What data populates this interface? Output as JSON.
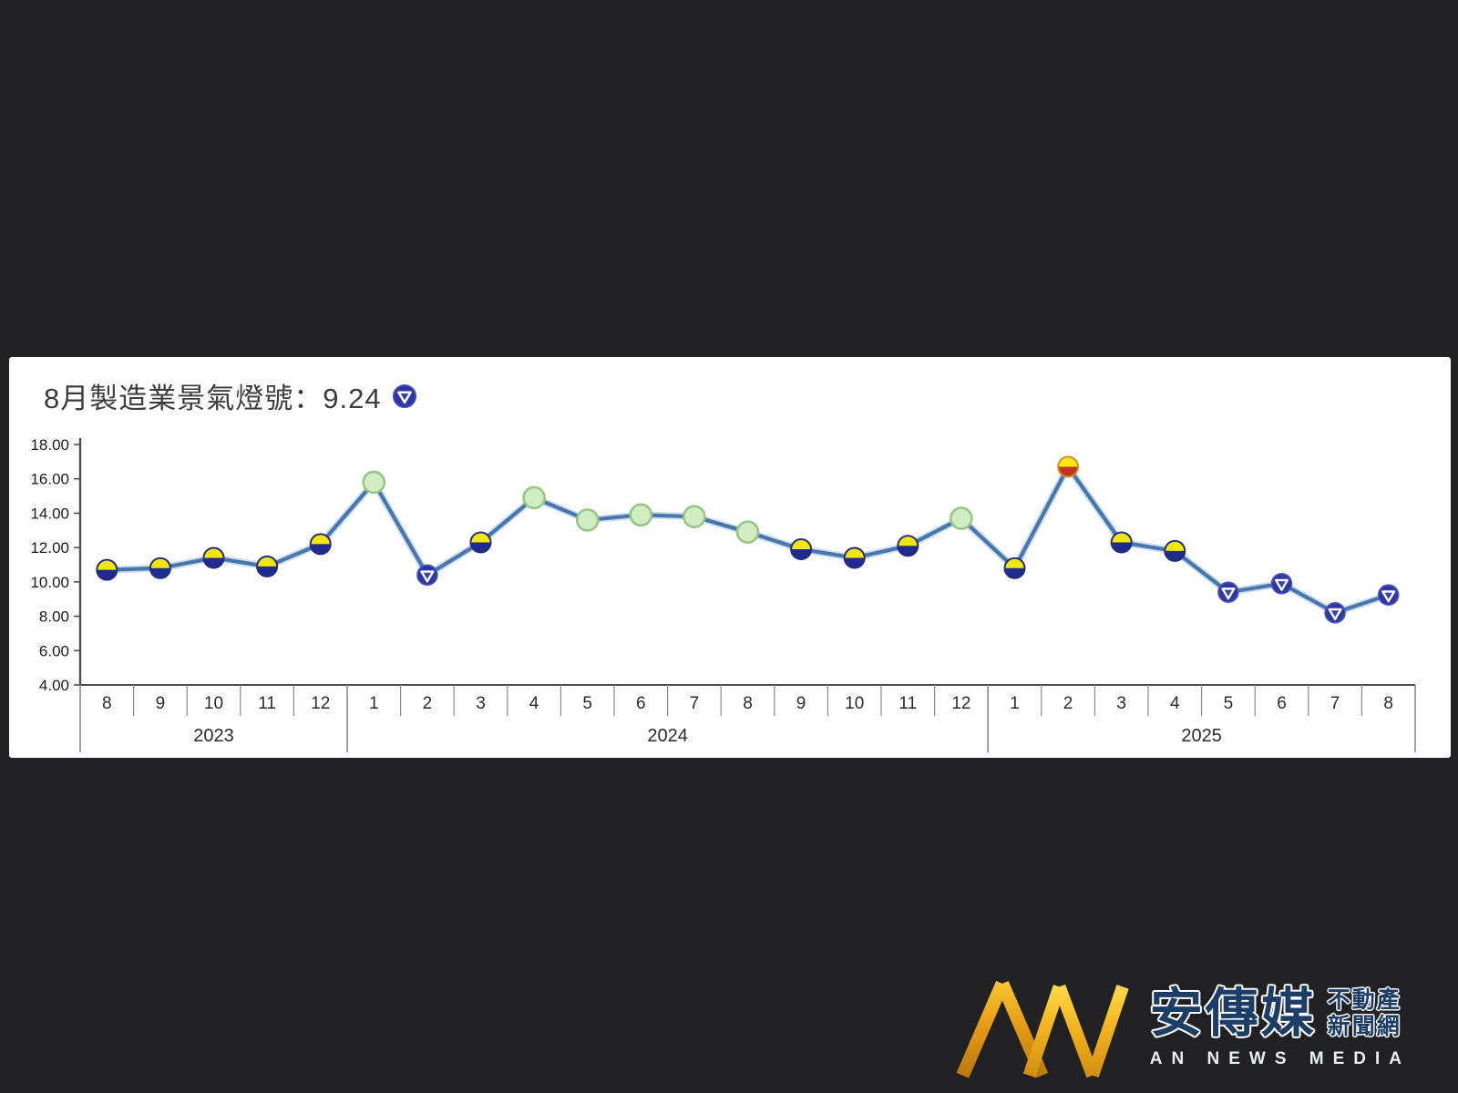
{
  "header": {
    "title": "8月製造業景氣燈號：9.24",
    "title_icon": "blue-light-icon"
  },
  "chart_data": {
    "type": "line",
    "title": "8月製造業景氣燈號：9.24",
    "ylim": [
      4,
      18
    ],
    "ytick_step": 2,
    "ytick_labels": [
      "18.00",
      "16.00",
      "14.00",
      "12.00",
      "10.00",
      "8.00",
      "6.00",
      "4.00"
    ],
    "grid": "off",
    "legend": "none",
    "years": [
      {
        "label": "2023",
        "months": [
          "8",
          "9",
          "10",
          "11",
          "12"
        ]
      },
      {
        "label": "2024",
        "months": [
          "1",
          "2",
          "3",
          "4",
          "5",
          "6",
          "7",
          "8",
          "9",
          "10",
          "11",
          "12"
        ]
      },
      {
        "label": "2025",
        "months": [
          "1",
          "2",
          "3",
          "4",
          "5",
          "6",
          "7",
          "8"
        ]
      }
    ],
    "points": [
      {
        "year": "2023",
        "month": "8",
        "value": 10.7,
        "signal": "yellow-blue"
      },
      {
        "year": "2023",
        "month": "9",
        "value": 10.8,
        "signal": "yellow-blue"
      },
      {
        "year": "2023",
        "month": "10",
        "value": 11.4,
        "signal": "yellow-blue"
      },
      {
        "year": "2023",
        "month": "11",
        "value": 10.9,
        "signal": "yellow-blue"
      },
      {
        "year": "2023",
        "month": "12",
        "value": 12.2,
        "signal": "yellow-blue"
      },
      {
        "year": "2024",
        "month": "1",
        "value": 15.8,
        "signal": "green"
      },
      {
        "year": "2024",
        "month": "2",
        "value": 10.4,
        "signal": "blue"
      },
      {
        "year": "2024",
        "month": "3",
        "value": 12.3,
        "signal": "yellow-blue"
      },
      {
        "year": "2024",
        "month": "4",
        "value": 14.9,
        "signal": "green"
      },
      {
        "year": "2024",
        "month": "5",
        "value": 13.6,
        "signal": "green"
      },
      {
        "year": "2024",
        "month": "6",
        "value": 13.9,
        "signal": "green"
      },
      {
        "year": "2024",
        "month": "7",
        "value": 13.8,
        "signal": "green"
      },
      {
        "year": "2024",
        "month": "8",
        "value": 12.9,
        "signal": "green"
      },
      {
        "year": "2024",
        "month": "9",
        "value": 11.9,
        "signal": "yellow-blue"
      },
      {
        "year": "2024",
        "month": "10",
        "value": 11.4,
        "signal": "yellow-blue"
      },
      {
        "year": "2024",
        "month": "11",
        "value": 12.1,
        "signal": "yellow-blue"
      },
      {
        "year": "2024",
        "month": "12",
        "value": 13.7,
        "signal": "green"
      },
      {
        "year": "2025",
        "month": "1",
        "value": 10.8,
        "signal": "yellow-blue"
      },
      {
        "year": "2025",
        "month": "2",
        "value": 16.7,
        "signal": "yellow-red"
      },
      {
        "year": "2025",
        "month": "3",
        "value": 12.3,
        "signal": "yellow-blue"
      },
      {
        "year": "2025",
        "month": "4",
        "value": 11.8,
        "signal": "yellow-blue"
      },
      {
        "year": "2025",
        "month": "5",
        "value": 9.4,
        "signal": "blue"
      },
      {
        "year": "2025",
        "month": "6",
        "value": 9.9,
        "signal": "blue"
      },
      {
        "year": "2025",
        "month": "7",
        "value": 8.2,
        "signal": "blue"
      },
      {
        "year": "2025",
        "month": "8",
        "value": 9.24,
        "signal": "blue"
      }
    ],
    "colors": {
      "line": "#4877ad",
      "line_halo": "#a6c3de",
      "axis": "#4f4f4f",
      "separator": "#8a8a8a",
      "tick_label": "#1a1a1a",
      "month_label": "#2b2b2b",
      "signals": {
        "yellow-blue": {
          "top": "#f2e60f",
          "bottom": "#1f2b8e",
          "border": "#232d7d"
        },
        "green": {
          "fill": "#d2ecc4",
          "border": "#96c884"
        },
        "blue": {
          "fill": "#2e37a3",
          "border": "#5058bd",
          "triangle_stroke": "#ffffff",
          "triangle_fill": "#3a43ad"
        },
        "yellow-red": {
          "top": "#ffe814",
          "bottom": "#c03425",
          "border": "#d98f2b"
        }
      }
    }
  },
  "logo": {
    "monogram": "AN",
    "name_zh": "安傳媒",
    "tagline_line1": "不動產",
    "tagline_line2": "新聞網",
    "name_en": "AN NEWS MEDIA",
    "gold": "#eda517",
    "navy": "#1c3d66"
  }
}
